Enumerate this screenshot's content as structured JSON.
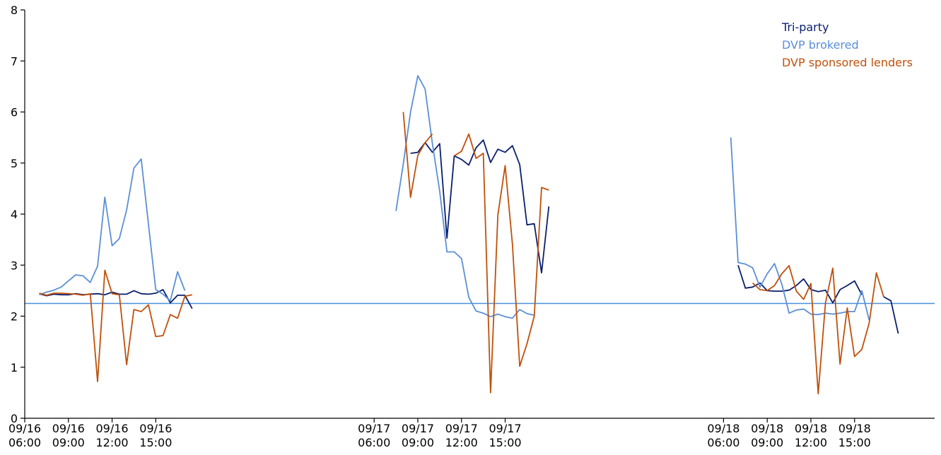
{
  "chart_data": {
    "type": "line",
    "xlabel": "",
    "ylabel": "",
    "ylim": [
      0,
      8
    ],
    "xlim": [
      "09/16 06:00",
      "09/18 20:30"
    ],
    "yticks": [
      "0",
      "1",
      "2",
      "3",
      "4",
      "5",
      "6",
      "7",
      "8"
    ],
    "xticks": [
      {
        "t": "09/16 06:00",
        "l1": "09/16",
        "l2": "06:00"
      },
      {
        "t": "09/16 09:00",
        "l1": "09/16",
        "l2": "09:00"
      },
      {
        "t": "09/16 12:00",
        "l1": "09/16",
        "l2": "12:00"
      },
      {
        "t": "09/16 15:00",
        "l1": "09/16",
        "l2": "15:00"
      },
      {
        "t": "09/17 06:00",
        "l1": "09/17",
        "l2": "06:00"
      },
      {
        "t": "09/17 09:00",
        "l1": "09/17",
        "l2": "09:00"
      },
      {
        "t": "09/17 12:00",
        "l1": "09/17",
        "l2": "12:00"
      },
      {
        "t": "09/17 15:00",
        "l1": "09/17",
        "l2": "15:00"
      },
      {
        "t": "09/18 06:00",
        "l1": "09/18",
        "l2": "06:00"
      },
      {
        "t": "09/18 09:00",
        "l1": "09/18",
        "l2": "09:00"
      },
      {
        "t": "09/18 12:00",
        "l1": "09/18",
        "l2": "12:00"
      },
      {
        "t": "09/18 15:00",
        "l1": "09/18",
        "l2": "15:00"
      }
    ],
    "reference_line": {
      "y": 2.25,
      "color": "#4a90d9"
    },
    "legend_position": "top-right",
    "grid": false,
    "series": [
      {
        "name": "Tri-party",
        "color": "#0a1f6e",
        "segments": [
          [
            [
              "09/16 07:00",
              2.44
            ],
            [
              "09/16 07:30",
              2.4
            ],
            [
              "09/16 08:00",
              2.43
            ],
            [
              "09/16 08:30",
              2.42
            ],
            [
              "09/16 09:00",
              2.42
            ],
            [
              "09/16 09:30",
              2.44
            ],
            [
              "09/16 10:00",
              2.42
            ],
            [
              "09/16 10:30",
              2.43
            ],
            [
              "09/16 11:00",
              2.44
            ],
            [
              "09/16 11:30",
              2.42
            ],
            [
              "09/16 12:00",
              2.47
            ],
            [
              "09/16 12:30",
              2.43
            ],
            [
              "09/16 13:00",
              2.43
            ],
            [
              "09/16 13:30",
              2.5
            ],
            [
              "09/16 14:00",
              2.44
            ],
            [
              "09/16 14:30",
              2.43
            ],
            [
              "09/16 15:00",
              2.45
            ],
            [
              "09/16 15:30",
              2.52
            ],
            [
              "09/16 16:00",
              2.26
            ],
            [
              "09/16 16:30",
              2.41
            ],
            [
              "09/16 17:00",
              2.41
            ],
            [
              "09/16 17:30",
              2.15
            ]
          ],
          [
            [
              "09/17 08:30",
              5.19
            ],
            [
              "09/17 09:00",
              5.21
            ],
            [
              "09/17 09:30",
              5.4
            ],
            [
              "09/17 10:00",
              5.21
            ],
            [
              "09/17 10:30",
              5.38
            ],
            [
              "09/17 11:00",
              3.53
            ],
            [
              "09/17 11:30",
              5.14
            ],
            [
              "09/17 12:00",
              5.07
            ],
            [
              "09/17 12:30",
              4.96
            ],
            [
              "09/17 13:00",
              5.3
            ],
            [
              "09/17 13:30",
              5.45
            ],
            [
              "09/17 14:00",
              5.01
            ],
            [
              "09/17 14:30",
              5.27
            ],
            [
              "09/17 15:00",
              5.21
            ],
            [
              "09/17 15:30",
              5.34
            ],
            [
              "09/17 16:00",
              4.97
            ],
            [
              "09/17 16:30",
              3.79
            ],
            [
              "09/17 17:00",
              3.81
            ],
            [
              "09/17 17:30",
              2.85
            ],
            [
              "09/17 18:00",
              4.15
            ]
          ],
          [
            [
              "09/18 07:00",
              3.0
            ],
            [
              "09/18 07:30",
              2.55
            ],
            [
              "09/18 08:00",
              2.57
            ],
            [
              "09/18 08:30",
              2.65
            ],
            [
              "09/18 09:00",
              2.5
            ],
            [
              "09/18 09:30",
              2.49
            ],
            [
              "09/18 10:00",
              2.49
            ],
            [
              "09/18 10:30",
              2.51
            ],
            [
              "09/18 11:00",
              2.6
            ],
            [
              "09/18 11:30",
              2.73
            ],
            [
              "09/18 12:00",
              2.52
            ],
            [
              "09/18 12:30",
              2.48
            ],
            [
              "09/18 13:00",
              2.51
            ],
            [
              "09/18 13:30",
              2.26
            ],
            [
              "09/18 14:00",
              2.52
            ],
            [
              "09/18 14:30",
              2.6
            ],
            [
              "09/18 15:00",
              2.69
            ],
            [
              "09/18 15:30",
              2.42
            ]
          ],
          [
            [
              "09/18 17:00",
              2.38
            ],
            [
              "09/18 17:30",
              2.3
            ],
            [
              "09/18 18:00",
              1.66
            ]
          ]
        ]
      },
      {
        "name": "DVP brokered",
        "color": "#5b8fd6",
        "segments": [
          [
            [
              "09/16 07:00",
              2.42
            ],
            [
              "09/16 07:30",
              2.47
            ],
            [
              "09/16 08:00",
              2.51
            ],
            [
              "09/16 08:30",
              2.57
            ],
            [
              "09/16 09:00",
              2.69
            ],
            [
              "09/16 09:30",
              2.81
            ],
            [
              "09/16 10:00",
              2.79
            ],
            [
              "09/16 10:30",
              2.66
            ],
            [
              "09/16 11:00",
              2.98
            ],
            [
              "09/16 11:30",
              4.33
            ],
            [
              "09/16 12:00",
              3.38
            ],
            [
              "09/16 12:30",
              3.52
            ],
            [
              "09/16 13:00",
              4.08
            ],
            [
              "09/16 13:30",
              4.9
            ],
            [
              "09/16 14:00",
              5.08
            ],
            [
              "09/16 15:00",
              2.52
            ],
            [
              "09/16 15:30",
              2.43
            ],
            [
              "09/16 16:00",
              2.3
            ],
            [
              "09/16 16:30",
              2.87
            ],
            [
              "09/16 17:00",
              2.5
            ]
          ],
          [
            [
              "09/17 07:30",
              4.06
            ],
            [
              "09/17 08:00",
              4.98
            ],
            [
              "09/17 08:30",
              6.0
            ],
            [
              "09/17 09:00",
              6.71
            ],
            [
              "09/17 09:30",
              6.45
            ],
            [
              "09/17 10:00",
              5.38
            ],
            [
              "09/17 10:30",
              4.45
            ],
            [
              "09/17 11:00",
              3.26
            ],
            [
              "09/17 11:30",
              3.26
            ],
            [
              "09/17 12:00",
              3.13
            ],
            [
              "09/17 12:30",
              2.37
            ],
            [
              "09/17 13:00",
              2.1
            ],
            [
              "09/17 13:30",
              2.06
            ],
            [
              "09/17 14:00",
              1.99
            ],
            [
              "09/17 14:30",
              2.04
            ],
            [
              "09/17 15:00",
              1.99
            ],
            [
              "09/17 15:30",
              1.96
            ],
            [
              "09/17 16:00",
              2.13
            ],
            [
              "09/17 16:30",
              2.05
            ],
            [
              "09/17 17:00",
              2.02
            ]
          ],
          [
            [
              "09/18 06:30",
              5.5
            ],
            [
              "09/18 07:00",
              3.05
            ],
            [
              "09/18 07:30",
              3.02
            ],
            [
              "09/18 08:00",
              2.95
            ],
            [
              "09/18 08:30",
              2.57
            ],
            [
              "09/18 09:00",
              2.83
            ],
            [
              "09/18 09:30",
              3.03
            ],
            [
              "09/18 10:00",
              2.63
            ],
            [
              "09/18 10:30",
              2.06
            ],
            [
              "09/18 11:00",
              2.12
            ],
            [
              "09/18 11:30",
              2.14
            ],
            [
              "09/18 12:00",
              2.04
            ],
            [
              "09/18 12:30",
              2.03
            ],
            [
              "09/18 13:00",
              2.06
            ],
            [
              "09/18 13:30",
              2.04
            ],
            [
              "09/18 14:00",
              2.06
            ],
            [
              "09/18 14:30",
              2.09
            ],
            [
              "09/18 15:00",
              2.09
            ],
            [
              "09/18 15:30",
              2.5
            ],
            [
              "09/18 16:00",
              1.93
            ]
          ]
        ]
      },
      {
        "name": "DVP sponsored lenders",
        "color": "#c0500a",
        "segments": [
          [
            [
              "09/16 07:00",
              2.45
            ],
            [
              "09/16 07:30",
              2.41
            ],
            [
              "09/16 08:00",
              2.45
            ],
            [
              "09/16 08:30",
              2.45
            ],
            [
              "09/16 09:00",
              2.44
            ],
            [
              "09/16 09:30",
              2.43
            ],
            [
              "09/16 10:00",
              2.41
            ],
            [
              "09/16 10:30",
              2.44
            ],
            [
              "09/16 11:00",
              0.72
            ],
            [
              "09/16 11:30",
              2.9
            ],
            [
              "09/16 12:00",
              2.44
            ],
            [
              "09/16 12:30",
              2.42
            ],
            [
              "09/16 13:00",
              1.05
            ],
            [
              "09/16 13:30",
              2.13
            ],
            [
              "09/16 14:00",
              2.09
            ],
            [
              "09/16 14:30",
              2.22
            ],
            [
              "09/16 15:00",
              1.6
            ],
            [
              "09/16 15:30",
              1.62
            ],
            [
              "09/16 16:00",
              2.03
            ],
            [
              "09/16 16:30",
              1.96
            ],
            [
              "09/16 17:00",
              2.39
            ],
            [
              "09/16 17:30",
              2.42
            ]
          ],
          [
            [
              "09/17 08:00",
              6.0
            ],
            [
              "09/17 08:30",
              4.33
            ],
            [
              "09/17 09:00",
              5.15
            ],
            [
              "09/17 09:30",
              5.4
            ],
            [
              "09/17 10:00",
              5.57
            ]
          ],
          [
            [
              "09/17 11:30",
              5.14
            ],
            [
              "09/17 12:00",
              5.23
            ],
            [
              "09/17 12:30",
              5.57
            ],
            [
              "09/17 13:00",
              5.09
            ],
            [
              "09/17 13:30",
              5.19
            ],
            [
              "09/17 14:00",
              0.5
            ],
            [
              "09/17 14:30",
              3.98
            ],
            [
              "09/17 15:00",
              4.95
            ],
            [
              "09/17 15:30",
              3.41
            ],
            [
              "09/17 16:00",
              1.02
            ],
            [
              "09/17 16:30",
              1.46
            ],
            [
              "09/17 17:00",
              2.0
            ],
            [
              "09/17 17:30",
              4.52
            ],
            [
              "09/17 18:00",
              4.47
            ]
          ],
          [
            [
              "09/18 08:00",
              2.65
            ],
            [
              "09/18 08:30",
              2.52
            ],
            [
              "09/18 09:00",
              2.5
            ],
            [
              "09/18 09:30",
              2.6
            ],
            [
              "09/18 10:00",
              2.83
            ],
            [
              "09/18 10:30",
              2.99
            ],
            [
              "09/18 11:00",
              2.49
            ],
            [
              "09/18 11:30",
              2.33
            ],
            [
              "09/18 12:00",
              2.64
            ],
            [
              "09/18 12:30",
              0.48
            ],
            [
              "09/18 13:00",
              2.26
            ],
            [
              "09/18 13:30",
              2.94
            ],
            [
              "09/18 14:00",
              1.06
            ],
            [
              "09/18 14:30",
              2.16
            ],
            [
              "09/18 15:00",
              1.21
            ],
            [
              "09/18 15:30",
              1.35
            ],
            [
              "09/18 16:00",
              1.86
            ],
            [
              "09/18 16:30",
              2.85
            ],
            [
              "09/18 17:00",
              2.38
            ]
          ]
        ]
      }
    ]
  }
}
